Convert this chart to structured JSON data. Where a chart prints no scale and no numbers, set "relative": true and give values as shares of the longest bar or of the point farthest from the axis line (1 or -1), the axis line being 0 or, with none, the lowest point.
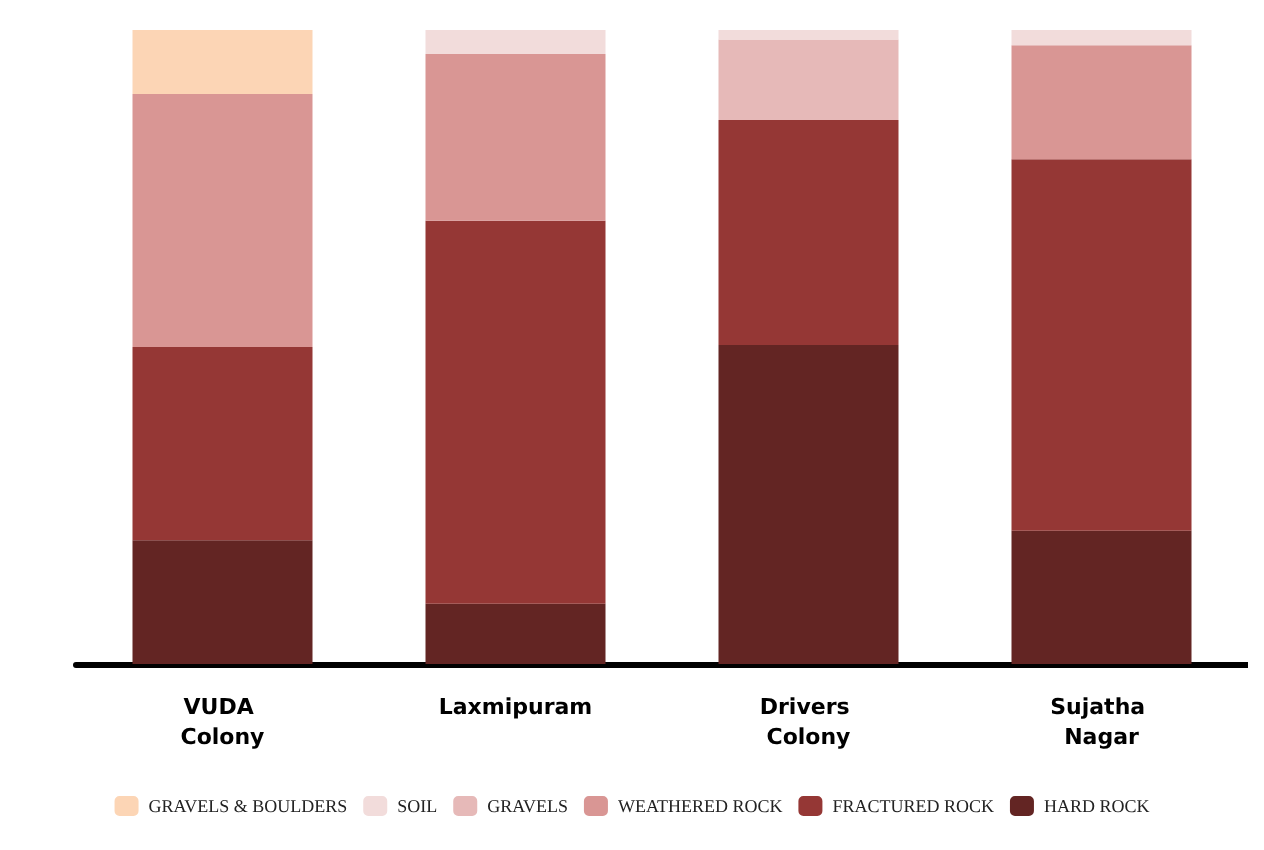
{
  "chart_data": {
    "type": "bar",
    "stacked": true,
    "relative": true,
    "categories": [
      "VUDA Colony",
      "Laxmipuram",
      "Drivers Colony",
      "Sujatha Nagar"
    ],
    "series": [
      {
        "name": "HARD ROCK",
        "color": "#632523",
        "values": [
          0.195,
          0.095,
          0.503,
          0.21
        ]
      },
      {
        "name": "FRACTURED ROCK",
        "color": "#953735",
        "values": [
          0.305,
          0.604,
          0.355,
          0.586
        ]
      },
      {
        "name": "WEATHERED ROCK",
        "color": "#d99694",
        "values": [
          0.399,
          0.263,
          null,
          0.18
        ]
      },
      {
        "name": "GRAVELS",
        "color": "#e6b9b8",
        "values": [
          null,
          null,
          0.127,
          null
        ]
      },
      {
        "name": "SOIL",
        "color": "#f2dcdb",
        "values": [
          null,
          0.038,
          0.015,
          0.024
        ]
      },
      {
        "name": "GRAVELS & BOULDERS",
        "color": "#fcd5b5",
        "values": [
          0.101,
          null,
          null,
          null
        ]
      }
    ],
    "legend": "bottom"
  }
}
